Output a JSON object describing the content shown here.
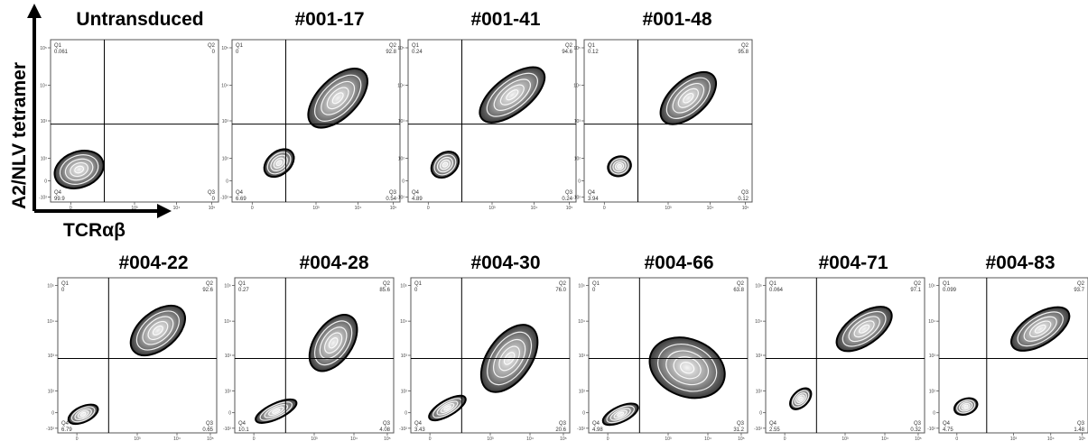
{
  "figure": {
    "y_axis_label": "A2/NLV tetramer",
    "x_axis_label": "TCRαβ"
  },
  "chart_data": [
    {
      "type": "scatter",
      "title": "Untransduced",
      "quadrants": {
        "Q1": "0.061",
        "Q2": "0",
        "Q3": "0",
        "Q4": "99.9"
      }
    },
    {
      "type": "scatter",
      "title": "#001-17",
      "quadrants": {
        "Q1": "0",
        "Q2": "92.8",
        "Q3": "0.54",
        "Q4": "6.69"
      }
    },
    {
      "type": "scatter",
      "title": "#001-41",
      "quadrants": {
        "Q1": "0.24",
        "Q2": "94.6",
        "Q3": "0.24",
        "Q4": "4.89"
      }
    },
    {
      "type": "scatter",
      "title": "#001-48",
      "quadrants": {
        "Q1": "0.12",
        "Q2": "95.8",
        "Q3": "0.12",
        "Q4": "3.94"
      }
    },
    {
      "type": "scatter",
      "title": "#004-22",
      "quadrants": {
        "Q1": "0",
        "Q2": "92.6",
        "Q3": "0.65",
        "Q4": "6.79"
      }
    },
    {
      "type": "scatter",
      "title": "#004-28",
      "quadrants": {
        "Q1": "0.27",
        "Q2": "85.6",
        "Q3": "4.08",
        "Q4": "10.1"
      }
    },
    {
      "type": "scatter",
      "title": "#004-30",
      "quadrants": {
        "Q1": "0",
        "Q2": "76.0",
        "Q3": "20.6",
        "Q4": "3.43"
      }
    },
    {
      "type": "scatter",
      "title": "#004-66",
      "quadrants": {
        "Q1": "0",
        "Q2": "63.8",
        "Q3": "31.2",
        "Q4": "4.98"
      }
    },
    {
      "type": "scatter",
      "title": "#004-71",
      "quadrants": {
        "Q1": "0.064",
        "Q2": "97.1",
        "Q3": "0.32",
        "Q4": "2.55"
      }
    },
    {
      "type": "scatter",
      "title": "#004-83",
      "quadrants": {
        "Q1": "0.099",
        "Q2": "93.7",
        "Q3": "1.48",
        "Q4": "4.75"
      }
    }
  ],
  "axes": {
    "y_ticks": [
      "10^5",
      "10^4",
      "10^3",
      "10^2",
      "0",
      "-10^2"
    ],
    "x_ticks": [
      "0",
      "10^3",
      "10^4",
      "10^5"
    ]
  }
}
